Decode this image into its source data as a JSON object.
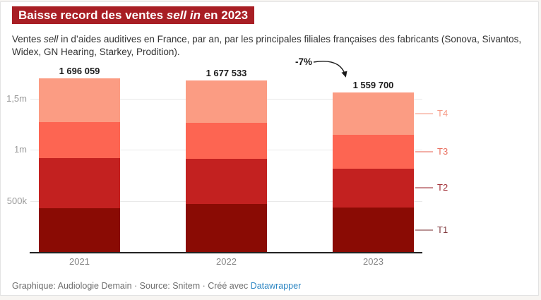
{
  "header": {
    "title": {
      "before": "Baisse record des ventes ",
      "italic": "sell in",
      "after": " en 2023"
    },
    "subtitle": {
      "before": "Ventes ",
      "italic": "sell",
      "after": " in d’aides auditives en France, par an, par les principales filiales françaises des fabricants (Sonova, Sivantos, Widex, GN Hearing, Starkey, Prodition)."
    }
  },
  "footer": {
    "credit": "Graphique: Audiologie Demain · Source: Snitem · Créé avec ",
    "link_label": "Datawrapper"
  },
  "colors": {
    "title_bg": "#a81e24",
    "grid": "#e9e9e9",
    "axis": "#222222",
    "tick_text": "#9b9b9b",
    "category_text": "#858585",
    "value_text": "#1d1d1d",
    "link": "#2c86c3",
    "border": "#e3e3e3"
  },
  "chart_data": {
    "type": "bar",
    "stacked": true,
    "title": "Baisse record des ventes sell in en 2023",
    "categories": [
      "2021",
      "2022",
      "2023"
    ],
    "series": [
      {
        "name": "T1",
        "color": "#8a0b04",
        "label_color": "#823c40",
        "values": [
          427000,
          467000,
          434000
        ]
      },
      {
        "name": "T2",
        "color": "#c32120",
        "label_color": "#a12f36",
        "values": [
          487000,
          441000,
          382000
        ]
      },
      {
        "name": "T3",
        "color": "#fd6552",
        "label_color": "#e96e5e",
        "values": [
          354000,
          357000,
          331000
        ]
      },
      {
        "name": "T4",
        "color": "#fb9c83",
        "label_color": "#f69c88",
        "values": [
          428059,
          412533,
          412700
        ]
      }
    ],
    "totals": [
      1696059,
      1677533,
      1559700
    ],
    "total_labels": [
      "1 696 059",
      "1 677 533",
      "1 559 700"
    ],
    "annotation": "-7%",
    "y_ticks": [
      {
        "value": 500000,
        "label": "500k"
      },
      {
        "value": 1000000,
        "label": "1m"
      },
      {
        "value": 1500000,
        "label": "1,5m"
      }
    ],
    "ylim": [
      0,
      1750000
    ],
    "grid": true,
    "legend_position": "right-direct-labels",
    "xlabel": "",
    "ylabel": ""
  }
}
